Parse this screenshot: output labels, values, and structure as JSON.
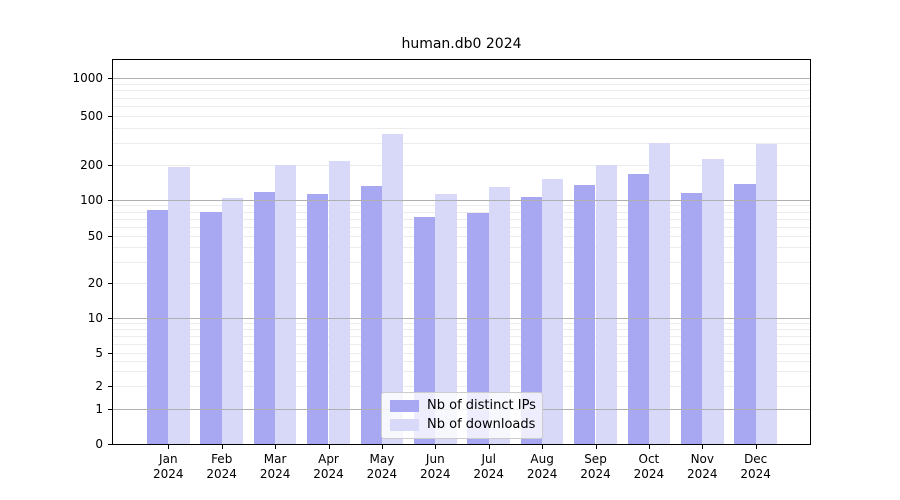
{
  "title": "human.db0 2024",
  "colors": {
    "distinct_ips_bar": "#a7a7f2",
    "downloads_bar": "#d8d8f8",
    "major_grid": "#b0b0b0",
    "minor_grid": "#ececec",
    "axis": "#000000",
    "legend_border": "#cccccc"
  },
  "legend": {
    "items": [
      {
        "label": "Nb of distinct IPs",
        "series_key": "distinct_ips"
      },
      {
        "label": "Nb of downloads",
        "series_key": "downloads"
      }
    ]
  },
  "chart_data": {
    "type": "bar",
    "title": "human.db0 2024",
    "categories": [
      "Jan",
      "Feb",
      "Mar",
      "Apr",
      "May",
      "Jun",
      "Jul",
      "Aug",
      "Sep",
      "Oct",
      "Nov",
      "Dec"
    ],
    "x_tick_year": "2024",
    "series": [
      {
        "name": "Nb of distinct IPs",
        "values": [
          83,
          80,
          116,
          113,
          131,
          72,
          78,
          106,
          134,
          166,
          115,
          138
        ]
      },
      {
        "name": "Nb of downloads",
        "values": [
          190,
          103,
          198,
          215,
          356,
          112,
          128,
          151,
          198,
          300,
          222,
          295
        ]
      }
    ],
    "yscale": "log-like (symlog with 0 baseline)",
    "y_tick_values": [
      0,
      1,
      2,
      5,
      10,
      20,
      50,
      100,
      200,
      500,
      1000
    ],
    "y_tick_labels": [
      "0",
      "1",
      "2",
      "5",
      "10",
      "20",
      "50",
      "100",
      "200",
      "500",
      "1000"
    ],
    "minor_grid_values": [
      3,
      4,
      6,
      7,
      8,
      9,
      30,
      40,
      60,
      70,
      80,
      90,
      300,
      400,
      600,
      700,
      800,
      900
    ],
    "major_grid_values": [
      1,
      10,
      100,
      1000
    ],
    "ylim": [
      0,
      1400
    ],
    "grid": true,
    "legend_position": "lower center"
  }
}
